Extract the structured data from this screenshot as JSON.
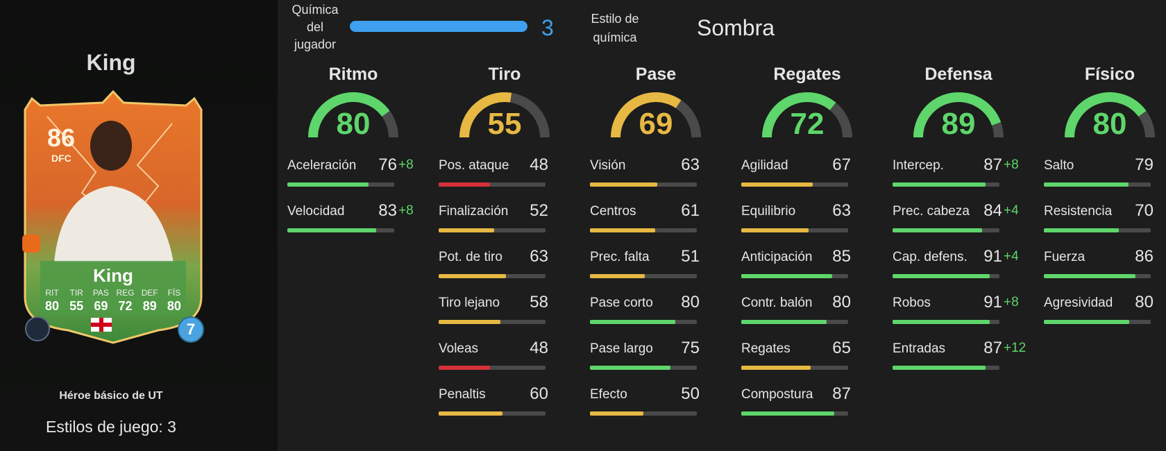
{
  "player": {
    "name": "King",
    "rating": "86",
    "position": "DFC",
    "card_name": "King",
    "card_attributes": [
      {
        "label": "RIT",
        "value": "80"
      },
      {
        "label": "TIR",
        "value": "55"
      },
      {
        "label": "PAS",
        "value": "69"
      },
      {
        "label": "REG",
        "value": "72"
      },
      {
        "label": "DEF",
        "value": "89"
      },
      {
        "label": "FÍS",
        "value": "80"
      }
    ],
    "chem_badge": "7",
    "card_type": "Héroe básico de UT",
    "playstyles": "Estilos de juego: 3"
  },
  "chemistry": {
    "label": "Química del jugador",
    "value": "3",
    "fill_fraction": 1.0,
    "style_label": "Estilo de química",
    "style_value": "Sombra"
  },
  "colors": {
    "green": "#5ed66b",
    "yellow": "#e7b843",
    "red": "#d63139",
    "blue": "#3ea0ef",
    "track": "#4a4a4a"
  },
  "columns": [
    {
      "title": "Ritmo",
      "value": 80,
      "stats": [
        {
          "name": "Aceleración",
          "value": 76,
          "boost": "+8"
        },
        {
          "name": "Velocidad",
          "value": 83,
          "boost": "+8"
        }
      ]
    },
    {
      "title": "Tiro",
      "value": 55,
      "stats": [
        {
          "name": "Pos. ataque",
          "value": 48,
          "boost": ""
        },
        {
          "name": "Finalización",
          "value": 52,
          "boost": ""
        },
        {
          "name": "Pot. de tiro",
          "value": 63,
          "boost": ""
        },
        {
          "name": "Tiro lejano",
          "value": 58,
          "boost": ""
        },
        {
          "name": "Voleas",
          "value": 48,
          "boost": ""
        },
        {
          "name": "Penaltis",
          "value": 60,
          "boost": ""
        }
      ]
    },
    {
      "title": "Pase",
      "value": 69,
      "stats": [
        {
          "name": "Visión",
          "value": 63,
          "boost": ""
        },
        {
          "name": "Centros",
          "value": 61,
          "boost": ""
        },
        {
          "name": "Prec. falta",
          "value": 51,
          "boost": ""
        },
        {
          "name": "Pase corto",
          "value": 80,
          "boost": ""
        },
        {
          "name": "Pase largo",
          "value": 75,
          "boost": ""
        },
        {
          "name": "Efecto",
          "value": 50,
          "boost": ""
        }
      ]
    },
    {
      "title": "Regates",
      "value": 72,
      "stats": [
        {
          "name": "Agilidad",
          "value": 67,
          "boost": ""
        },
        {
          "name": "Equilibrio",
          "value": 63,
          "boost": ""
        },
        {
          "name": "Anticipación",
          "value": 85,
          "boost": ""
        },
        {
          "name": "Contr. balón",
          "value": 80,
          "boost": ""
        },
        {
          "name": "Regates",
          "value": 65,
          "boost": ""
        },
        {
          "name": "Compostura",
          "value": 87,
          "boost": ""
        }
      ]
    },
    {
      "title": "Defensa",
      "value": 89,
      "stats": [
        {
          "name": "Intercep.",
          "value": 87,
          "boost": "+8"
        },
        {
          "name": "Prec. cabeza",
          "value": 84,
          "boost": "+4"
        },
        {
          "name": "Cap. defens.",
          "value": 91,
          "boost": "+4"
        },
        {
          "name": "Robos",
          "value": 91,
          "boost": "+8"
        },
        {
          "name": "Entradas",
          "value": 87,
          "boost": "+12"
        }
      ]
    },
    {
      "title": "Físico",
      "value": 80,
      "stats": [
        {
          "name": "Salto",
          "value": 79,
          "boost": ""
        },
        {
          "name": "Resistencia",
          "value": 70,
          "boost": ""
        },
        {
          "name": "Fuerza",
          "value": 86,
          "boost": ""
        },
        {
          "name": "Agresividad",
          "value": 80,
          "boost": ""
        }
      ]
    }
  ]
}
